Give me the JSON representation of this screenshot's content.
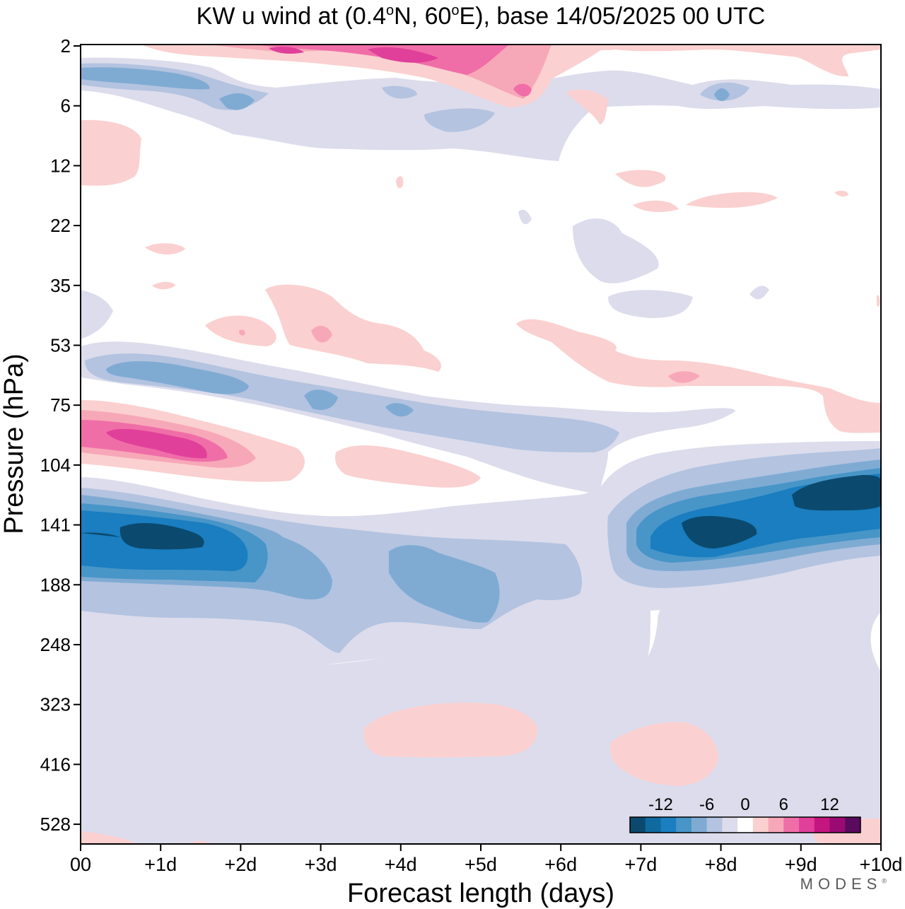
{
  "chart_data": {
    "type": "heatmap",
    "title": {
      "prefix": "KW u wind at (0.4",
      "deg1": "o",
      "mid": "N, 60",
      "deg2": "o",
      "suffix": "E),  base 14/05/2025  00 UTC"
    },
    "xlabel": "Forecast length (days)",
    "ylabel": "Pressure (hPa)",
    "x_ticks": [
      "00",
      "+1d",
      "+2d",
      "+3d",
      "+4d",
      "+5d",
      "+6d",
      "+7d",
      "+8d",
      "+9d",
      "+10d"
    ],
    "x_range_days": [
      0,
      10
    ],
    "y_ticks": [
      2,
      6,
      12,
      22,
      35,
      53,
      75,
      104,
      141,
      188,
      248,
      323,
      416,
      528
    ],
    "y_scale": "categorical-levels (top = 2 hPa, bottom = 600 hPa)",
    "colorbar": {
      "tick_labels": [
        "-12",
        "-6",
        "0",
        "6",
        "12"
      ],
      "tick_values": [
        -12,
        -6,
        0,
        6,
        12
      ],
      "levels": [
        -16,
        -14,
        -12,
        -10,
        -8,
        -6,
        -4,
        -2,
        2,
        4,
        6,
        8,
        10,
        12,
        14,
        16
      ],
      "colors": [
        "#0b4a6e",
        "#0f6aa0",
        "#1a7ec0",
        "#4895c8",
        "#7fabd3",
        "#b3c3e0",
        "#dcdcec",
        "#ffffff",
        "#fbd0d0",
        "#f7a8b8",
        "#f06ea8",
        "#e0409a",
        "#c4167f",
        "#9b0a73",
        "#5a0b5e"
      ],
      "placement": "bottom-right inside plot"
    },
    "regions": [
      {
        "name": "upper-strat-easterly",
        "sign": "negative",
        "x_days": [
          0,
          3.5
        ],
        "p_hPa": [
          3,
          8
        ],
        "peak_ms": -9
      },
      {
        "name": "upper-strat-westerly",
        "sign": "positive",
        "x_days": [
          1,
          5.5
        ],
        "p_hPa": [
          2,
          5
        ],
        "peak_ms": 11
      },
      {
        "name": "mid-strat-easterly",
        "sign": "negative",
        "x_days": [
          0.3,
          6.5
        ],
        "p_hPa": [
          55,
          85
        ],
        "peak_ms": -9
      },
      {
        "name": "lower-strat-westerly",
        "sign": "positive",
        "x_days": [
          0,
          2.5
        ],
        "p_hPa": [
          78,
          110
        ],
        "peak_ms": 11
      },
      {
        "name": "tropopause-easterly-1",
        "sign": "negative",
        "x_days": [
          0,
          2.2
        ],
        "p_hPa": [
          115,
          195
        ],
        "peak_ms": -15
      },
      {
        "name": "tropopause-easterly-2",
        "sign": "negative",
        "x_days": [
          6.6,
          10
        ],
        "p_hPa": [
          100,
          175
        ],
        "peak_ms": -16
      },
      {
        "name": "upper-trop-westerly-1",
        "sign": "positive",
        "x_days": [
          3.5,
          5.7
        ],
        "p_hPa": [
          330,
          460
        ],
        "peak_ms": 3
      },
      {
        "name": "upper-trop-westerly-2",
        "sign": "positive",
        "x_days": [
          6.6,
          8
        ],
        "p_hPa": [
          380,
          480
        ],
        "peak_ms": 3
      }
    ]
  },
  "brand": {
    "name": "MODES",
    "mark": "®"
  }
}
